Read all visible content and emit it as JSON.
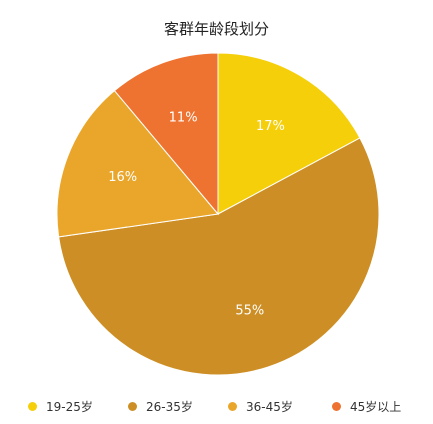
{
  "chart_data": {
    "type": "pie",
    "title": "客群年龄段划分",
    "categories": [
      "19-25岁",
      "26-35岁",
      "36-45岁",
      "45岁以上"
    ],
    "values": [
      17,
      55,
      16,
      11
    ],
    "value_labels": [
      "17%",
      "55%",
      "16%",
      "11%"
    ],
    "colors": [
      "#f5cf0a",
      "#cd8f25",
      "#eaa62a",
      "#ef7330"
    ],
    "legend_position": "bottom"
  }
}
